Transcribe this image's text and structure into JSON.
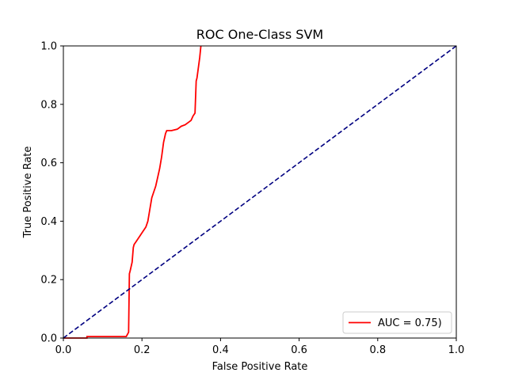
{
  "chart_data": {
    "type": "line",
    "title": "ROC One-Class SVM",
    "xlabel": "False Positive Rate",
    "ylabel": "True Positive Rate",
    "xlim": [
      0,
      1
    ],
    "ylim": [
      0,
      1
    ],
    "xticks": [
      "0.0",
      "0.2",
      "0.4",
      "0.6",
      "0.8",
      "1.0"
    ],
    "yticks": [
      "0.0",
      "0.2",
      "0.4",
      "0.6",
      "0.8",
      "1.0"
    ],
    "grid": false,
    "legend_position": "lower-right",
    "series": [
      {
        "name": "AUC = 0.75)",
        "color": "#ff0000",
        "style": "solid",
        "x": [
          0.0,
          0.06,
          0.06,
          0.16,
          0.162,
          0.166,
          0.167,
          0.168,
          0.17,
          0.175,
          0.178,
          0.18,
          0.185,
          0.195,
          0.2,
          0.21,
          0.215,
          0.22,
          0.225,
          0.23,
          0.235,
          0.24,
          0.245,
          0.25,
          0.255,
          0.26,
          0.263,
          0.265,
          0.275,
          0.29,
          0.3,
          0.31,
          0.32,
          0.325,
          0.33,
          0.335,
          0.338,
          0.34,
          0.341,
          0.345,
          0.347,
          0.35
        ],
        "y": [
          0.0,
          0.0,
          0.005,
          0.005,
          0.01,
          0.02,
          0.12,
          0.22,
          0.23,
          0.26,
          0.31,
          0.32,
          0.33,
          0.35,
          0.36,
          0.38,
          0.4,
          0.44,
          0.48,
          0.5,
          0.52,
          0.55,
          0.58,
          0.62,
          0.67,
          0.7,
          0.71,
          0.71,
          0.71,
          0.715,
          0.725,
          0.73,
          0.74,
          0.745,
          0.76,
          0.77,
          0.88,
          0.89,
          0.9,
          0.94,
          0.96,
          1.0
        ]
      },
      {
        "name": "",
        "color": "#000080",
        "style": "dashed",
        "x": [
          0,
          1
        ],
        "y": [
          0,
          1
        ]
      }
    ]
  }
}
